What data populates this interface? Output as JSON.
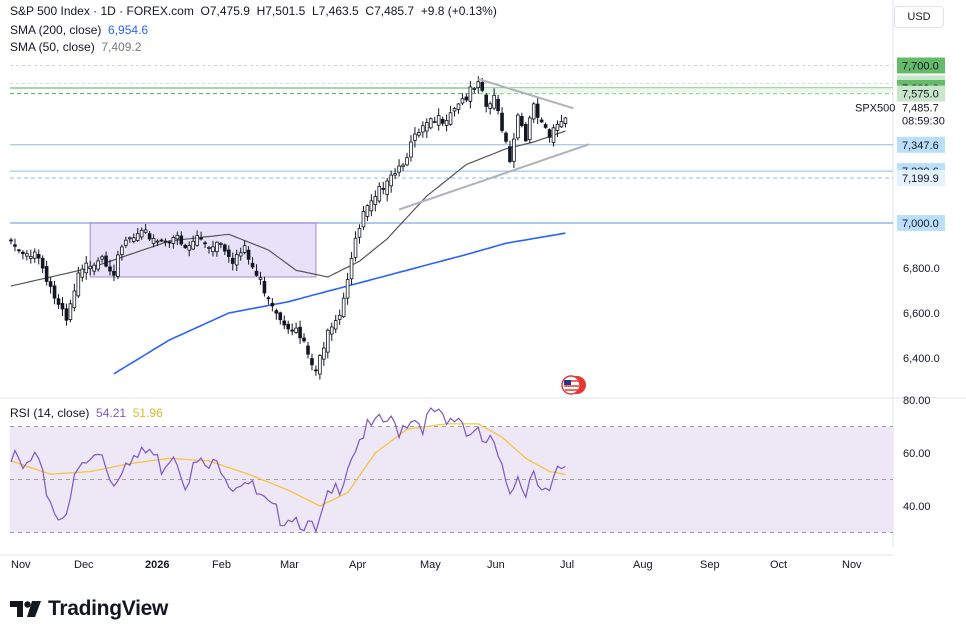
{
  "header": {
    "symbol": "S&P 500 Index · 1D · FOREX.com",
    "o_label": "O",
    "o_val": "7,475.9",
    "h_label": "H",
    "h_val": "7,501.5",
    "l_label": "L",
    "l_val": "7,463.5",
    "c_label": "C",
    "c_val": "7,485.7",
    "change": "+9.8 (+0.13%)",
    "sma200_label": "SMA (200, close)",
    "sma200_val": "6,954.6",
    "sma50_label": "SMA (50, close)",
    "sma50_val": "7,409.2",
    "currency": "USD"
  },
  "rsi_header": {
    "label": "RSI (14, close)",
    "rsi_val": "54.21",
    "ma_val": "51.96"
  },
  "brand": "TradingView",
  "colors": {
    "up": "#131722",
    "down": "#131722",
    "sma200": "#2962ff",
    "sma50": "#555555",
    "rsi": "#7e57c2",
    "rsi_ma": "#f5c542",
    "rsi_band": "#ede7f6",
    "range_box": "#e3ddf8",
    "range_border": "#9575cd",
    "resistance": "#4caf50",
    "support": "#90b8ec",
    "green_tag": "#66bb6a",
    "blue_tag": "#bbdefb"
  },
  "chart_data": [
    {
      "type": "candlestick",
      "title": "S&P 500 Index · 1D · FOREX.com",
      "x_ticks": [
        "Nov",
        "Dec",
        "2026",
        "Feb",
        "Mar",
        "Apr",
        "May",
        "Jun",
        "Jul",
        "Aug",
        "Sep",
        "Oct",
        "Nov"
      ],
      "y_ticks": [
        6400,
        6600,
        6800,
        7000,
        7200,
        7400,
        7600,
        7800
      ],
      "y_tick_labels": [
        "6,400.0",
        "6,600.0",
        "6,800.0",
        "7,000.0",
        "",
        "",
        "",
        ""
      ],
      "ylim": [
        6300,
        7800
      ],
      "last_price": 7485.7,
      "last_label": "SPX500",
      "last_price_label": "7,485.7",
      "countdown": "08:59:30",
      "level_tags": [
        {
          "value": 7700.0,
          "label": "7,700.0",
          "style": "green"
        },
        {
          "value": 7620.8,
          "label": "7,620.8",
          "style": "green-light"
        },
        {
          "value": 7600.0,
          "label": "7,600.0",
          "style": "green"
        },
        {
          "value": 7575.0,
          "label": "7,575.0",
          "style": "green-light"
        },
        {
          "value": 7347.6,
          "label": "7,347.6",
          "style": "blue"
        },
        {
          "value": 7230.6,
          "label": "7,230.6",
          "style": "blue"
        },
        {
          "value": 7199.9,
          "label": "7,199.9",
          "style": "blue-light"
        },
        {
          "value": 7000.0,
          "label": "7,000.0",
          "style": "blue"
        }
      ],
      "close_waypoints": [
        [
          0,
          6920
        ],
        [
          3,
          6860
        ],
        [
          6,
          6900
        ],
        [
          9,
          6780
        ],
        [
          12,
          6640
        ],
        [
          14,
          6570
        ],
        [
          17,
          6770
        ],
        [
          20,
          6840
        ],
        [
          23,
          6880
        ],
        [
          26,
          6800
        ],
        [
          29,
          6930
        ],
        [
          32,
          6950
        ],
        [
          35,
          6960
        ],
        [
          38,
          6940
        ],
        [
          41,
          6960
        ],
        [
          44,
          6890
        ],
        [
          47,
          6950
        ],
        [
          50,
          6920
        ],
        [
          53,
          6940
        ],
        [
          56,
          6860
        ],
        [
          59,
          6890
        ],
        [
          62,
          6780
        ],
        [
          65,
          6700
        ],
        [
          68,
          6600
        ],
        [
          71,
          6560
        ],
        [
          74,
          6470
        ],
        [
          77,
          6340
        ],
        [
          80,
          6560
        ],
        [
          83,
          6620
        ],
        [
          86,
          6860
        ],
        [
          89,
          7050
        ],
        [
          92,
          7110
        ],
        [
          95,
          7230
        ],
        [
          98,
          7270
        ],
        [
          101,
          7360
        ],
        [
          104,
          7430
        ],
        [
          107,
          7460
        ],
        [
          110,
          7500
        ],
        [
          113,
          7560
        ],
        [
          116,
          7590
        ],
        [
          118,
          7620
        ],
        [
          120,
          7530
        ],
        [
          122,
          7560
        ],
        [
          124,
          7450
        ],
        [
          126,
          7310
        ],
        [
          128,
          7500
        ],
        [
          130,
          7410
        ],
        [
          132,
          7520
        ],
        [
          134,
          7440
        ],
        [
          136,
          7390
        ],
        [
          138,
          7460
        ],
        [
          140,
          7486
        ]
      ],
      "sma50_waypoints": [
        [
          0,
          6720
        ],
        [
          20,
          6800
        ],
        [
          40,
          6920
        ],
        [
          55,
          6950
        ],
        [
          65,
          6880
        ],
        [
          72,
          6790
        ],
        [
          80,
          6760
        ],
        [
          88,
          6830
        ],
        [
          95,
          6930
        ],
        [
          105,
          7120
        ],
        [
          115,
          7260
        ],
        [
          125,
          7330
        ],
        [
          132,
          7360
        ],
        [
          140,
          7409
        ]
      ],
      "sma200_waypoints": [
        [
          26,
          6330
        ],
        [
          40,
          6480
        ],
        [
          55,
          6600
        ],
        [
          70,
          6650
        ],
        [
          85,
          6720
        ],
        [
          100,
          6790
        ],
        [
          115,
          6860
        ],
        [
          125,
          6910
        ],
        [
          140,
          6955
        ]
      ],
      "range_box": {
        "x0": 20,
        "x1": 77,
        "y0": 6760,
        "y1": 7000
      },
      "trendlines": [
        {
          "from": [
            98,
            7060
          ],
          "to": [
            146,
            7350
          ],
          "color": "grey"
        },
        {
          "from": [
            118,
            7640
          ],
          "to": [
            142,
            7510
          ],
          "color": "grey"
        }
      ]
    },
    {
      "type": "line",
      "title": "RSI (14, close)",
      "y_ticks": [
        40,
        60,
        80
      ],
      "y_tick_labels": [
        "40.00",
        "60.00",
        "80.00"
      ],
      "ylim": [
        30,
        80
      ],
      "band": [
        30,
        70
      ],
      "midline": 50,
      "series": [
        {
          "name": "RSI",
          "waypoints": [
            [
              0,
              61
            ],
            [
              3,
              55
            ],
            [
              6,
              60
            ],
            [
              9,
              48
            ],
            [
              12,
              37
            ],
            [
              14,
              42
            ],
            [
              17,
              55
            ],
            [
              20,
              59
            ],
            [
              23,
              62
            ],
            [
              26,
              50
            ],
            [
              29,
              61
            ],
            [
              32,
              60
            ],
            [
              35,
              63
            ],
            [
              38,
              57
            ],
            [
              41,
              63
            ],
            [
              44,
              52
            ],
            [
              47,
              58
            ],
            [
              50,
              56
            ],
            [
              53,
              58
            ],
            [
              56,
              50
            ],
            [
              59,
              53
            ],
            [
              62,
              46
            ],
            [
              65,
              41
            ],
            [
              68,
              38
            ],
            [
              71,
              39
            ],
            [
              74,
              36
            ],
            [
              77,
              31
            ],
            [
              80,
              44
            ],
            [
              83,
              50
            ],
            [
              86,
              62
            ],
            [
              89,
              70
            ],
            [
              92,
              72
            ],
            [
              95,
              74
            ],
            [
              98,
              71
            ],
            [
              101,
              76
            ],
            [
              104,
              73
            ],
            [
              107,
              77
            ],
            [
              110,
              72
            ],
            [
              113,
              76
            ],
            [
              116,
              70
            ],
            [
              118,
              72
            ],
            [
              120,
              64
            ],
            [
              122,
              66
            ],
            [
              124,
              55
            ],
            [
              126,
              43
            ],
            [
              128,
              55
            ],
            [
              130,
              48
            ],
            [
              132,
              57
            ],
            [
              134,
              50
            ],
            [
              136,
              46
            ],
            [
              138,
              54
            ],
            [
              140,
              54.2
            ]
          ]
        },
        {
          "name": "RSI-based MA",
          "waypoints": [
            [
              0,
              57
            ],
            [
              10,
              52
            ],
            [
              20,
              53
            ],
            [
              30,
              56
            ],
            [
              40,
              58
            ],
            [
              50,
              57
            ],
            [
              60,
              52
            ],
            [
              70,
              46
            ],
            [
              78,
              40
            ],
            [
              85,
              45
            ],
            [
              92,
              60
            ],
            [
              100,
              69
            ],
            [
              110,
              71
            ],
            [
              118,
              71
            ],
            [
              124,
              66
            ],
            [
              130,
              58
            ],
            [
              136,
              53
            ],
            [
              140,
              51.96
            ]
          ]
        }
      ]
    }
  ]
}
